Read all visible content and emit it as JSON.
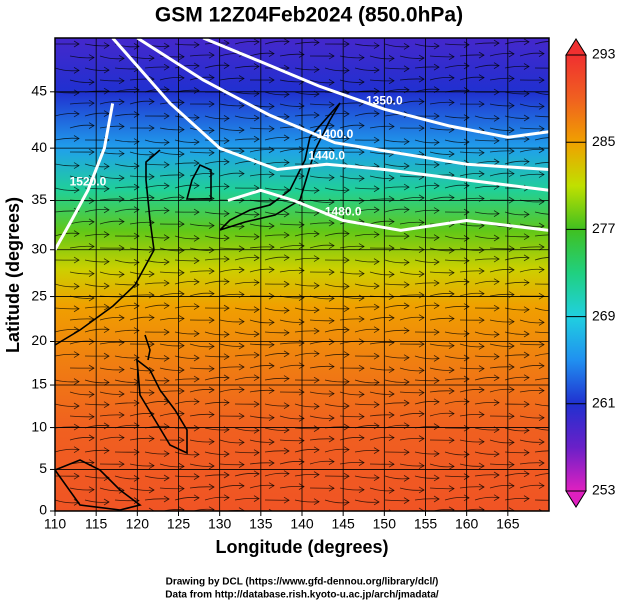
{
  "chart_data": {
    "type": "contour-map",
    "title": "GSM 12Z04Feb2024 (850.0hPa)",
    "x_label": "Longitude (degrees)",
    "y_label": "Latitude  (degrees)",
    "projection": "mercator",
    "xlim": [
      110,
      170
    ],
    "ylim": [
      0,
      49.4
    ],
    "xticks": [
      110,
      115,
      120,
      125,
      130,
      135,
      140,
      145,
      150,
      155,
      160,
      165
    ],
    "yticks": [
      0,
      5,
      10,
      15,
      20,
      25,
      30,
      35,
      40,
      45
    ],
    "grid": true,
    "field": {
      "lat": [
        0,
        10,
        18,
        24,
        28,
        32,
        36,
        40,
        45,
        49.4
      ],
      "values": [
        290,
        289,
        287,
        285,
        282,
        278,
        272,
        266,
        261,
        259
      ]
    },
    "colorbar": {
      "range": [
        253,
        293
      ],
      "ticks": [
        253,
        261,
        269,
        277,
        285,
        293
      ],
      "colors": [
        {
          "value": 253,
          "color": "#e020c0"
        },
        {
          "value": 257,
          "color": "#6a20c8"
        },
        {
          "value": 261,
          "color": "#2030d0"
        },
        {
          "value": 265,
          "color": "#2090f0"
        },
        {
          "value": 269,
          "color": "#20d0e0"
        },
        {
          "value": 273,
          "color": "#20d080"
        },
        {
          "value": 277,
          "color": "#40c020"
        },
        {
          "value": 281,
          "color": "#c0e000"
        },
        {
          "value": 285,
          "color": "#f0a000"
        },
        {
          "value": 289,
          "color": "#f06020"
        },
        {
          "value": 293,
          "color": "#f03030"
        }
      ]
    },
    "contours": [
      {
        "value": 1350,
        "label": "1350.0",
        "lon": [
          128,
          135,
          142,
          150,
          158,
          165,
          170
        ],
        "lat": [
          49.4,
          47.5,
          45.5,
          43.5,
          42,
          41,
          41.5
        ]
      },
      {
        "value": 1400,
        "label": "1400.0",
        "lon": [
          120,
          128,
          136,
          144,
          152,
          160,
          170
        ],
        "lat": [
          49.4,
          46,
          43,
          40.5,
          39.5,
          38.5,
          38
        ]
      },
      {
        "value": 1440,
        "label": "1440.0",
        "lon": [
          117,
          124,
          130,
          137,
          143,
          150,
          160,
          170
        ],
        "lat": [
          49.4,
          44,
          40,
          38,
          38.5,
          38,
          37,
          36
        ]
      },
      {
        "value": 1480,
        "label": "1480.0",
        "lon": [
          131,
          135,
          139,
          145,
          152,
          160,
          170
        ],
        "lat": [
          35,
          36,
          35,
          33,
          32,
          33,
          32
        ]
      },
      {
        "value": 1520,
        "label": "1520.0",
        "lon": [
          110,
          112,
          114,
          116,
          117
        ],
        "lat": [
          30,
          33,
          36,
          40,
          44
        ]
      }
    ],
    "footer": [
      "Drawing by DCL (https://www.gfd-dennou.org/library/dcl/)",
      "Data from http://database.rish.kyoto-u.ac.jp/arch/jmadata/"
    ]
  }
}
